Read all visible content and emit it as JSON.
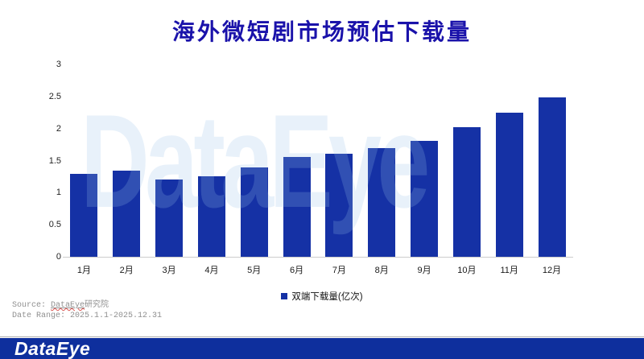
{
  "title": "海外微短剧市场预估下载量",
  "watermark": "DataEye",
  "chart_data": {
    "type": "bar",
    "title": "海外微短剧市场预估下载量",
    "categories": [
      "1月",
      "2月",
      "3月",
      "4月",
      "5月",
      "6月",
      "7月",
      "8月",
      "9月",
      "10月",
      "11月",
      "12月"
    ],
    "series": [
      {
        "name": "双端下载量(亿次)",
        "values": [
          1.29,
          1.35,
          1.2,
          1.25,
          1.4,
          1.56,
          1.61,
          1.69,
          1.81,
          2.02,
          2.25,
          2.48
        ]
      }
    ],
    "xlabel": "",
    "ylabel": "",
    "ylim": [
      0,
      3
    ],
    "yticks": [
      0,
      0.5,
      1,
      1.5,
      2,
      2.5,
      3
    ],
    "grid": false,
    "legend_position": "bottom",
    "bar_color": "#1531a5"
  },
  "legend": {
    "marker_color": "#1531a5",
    "label": "双端下载量(亿次)"
  },
  "footer": {
    "source_prefix": "Source: ",
    "source_link": "DataEye",
    "source_suffix": "研究院",
    "date_range": "Date Range: 2025.1.1-2025.12.31",
    "logo_text": "DataEye"
  },
  "colors": {
    "title_text": "#1a12aa",
    "bar": "#1531a5",
    "footer_bar": "#0e2f9d",
    "axis_line": "#cccccc",
    "source_text": "#8f8f8f",
    "watermark": "rgba(150,190,232,0.22)"
  }
}
